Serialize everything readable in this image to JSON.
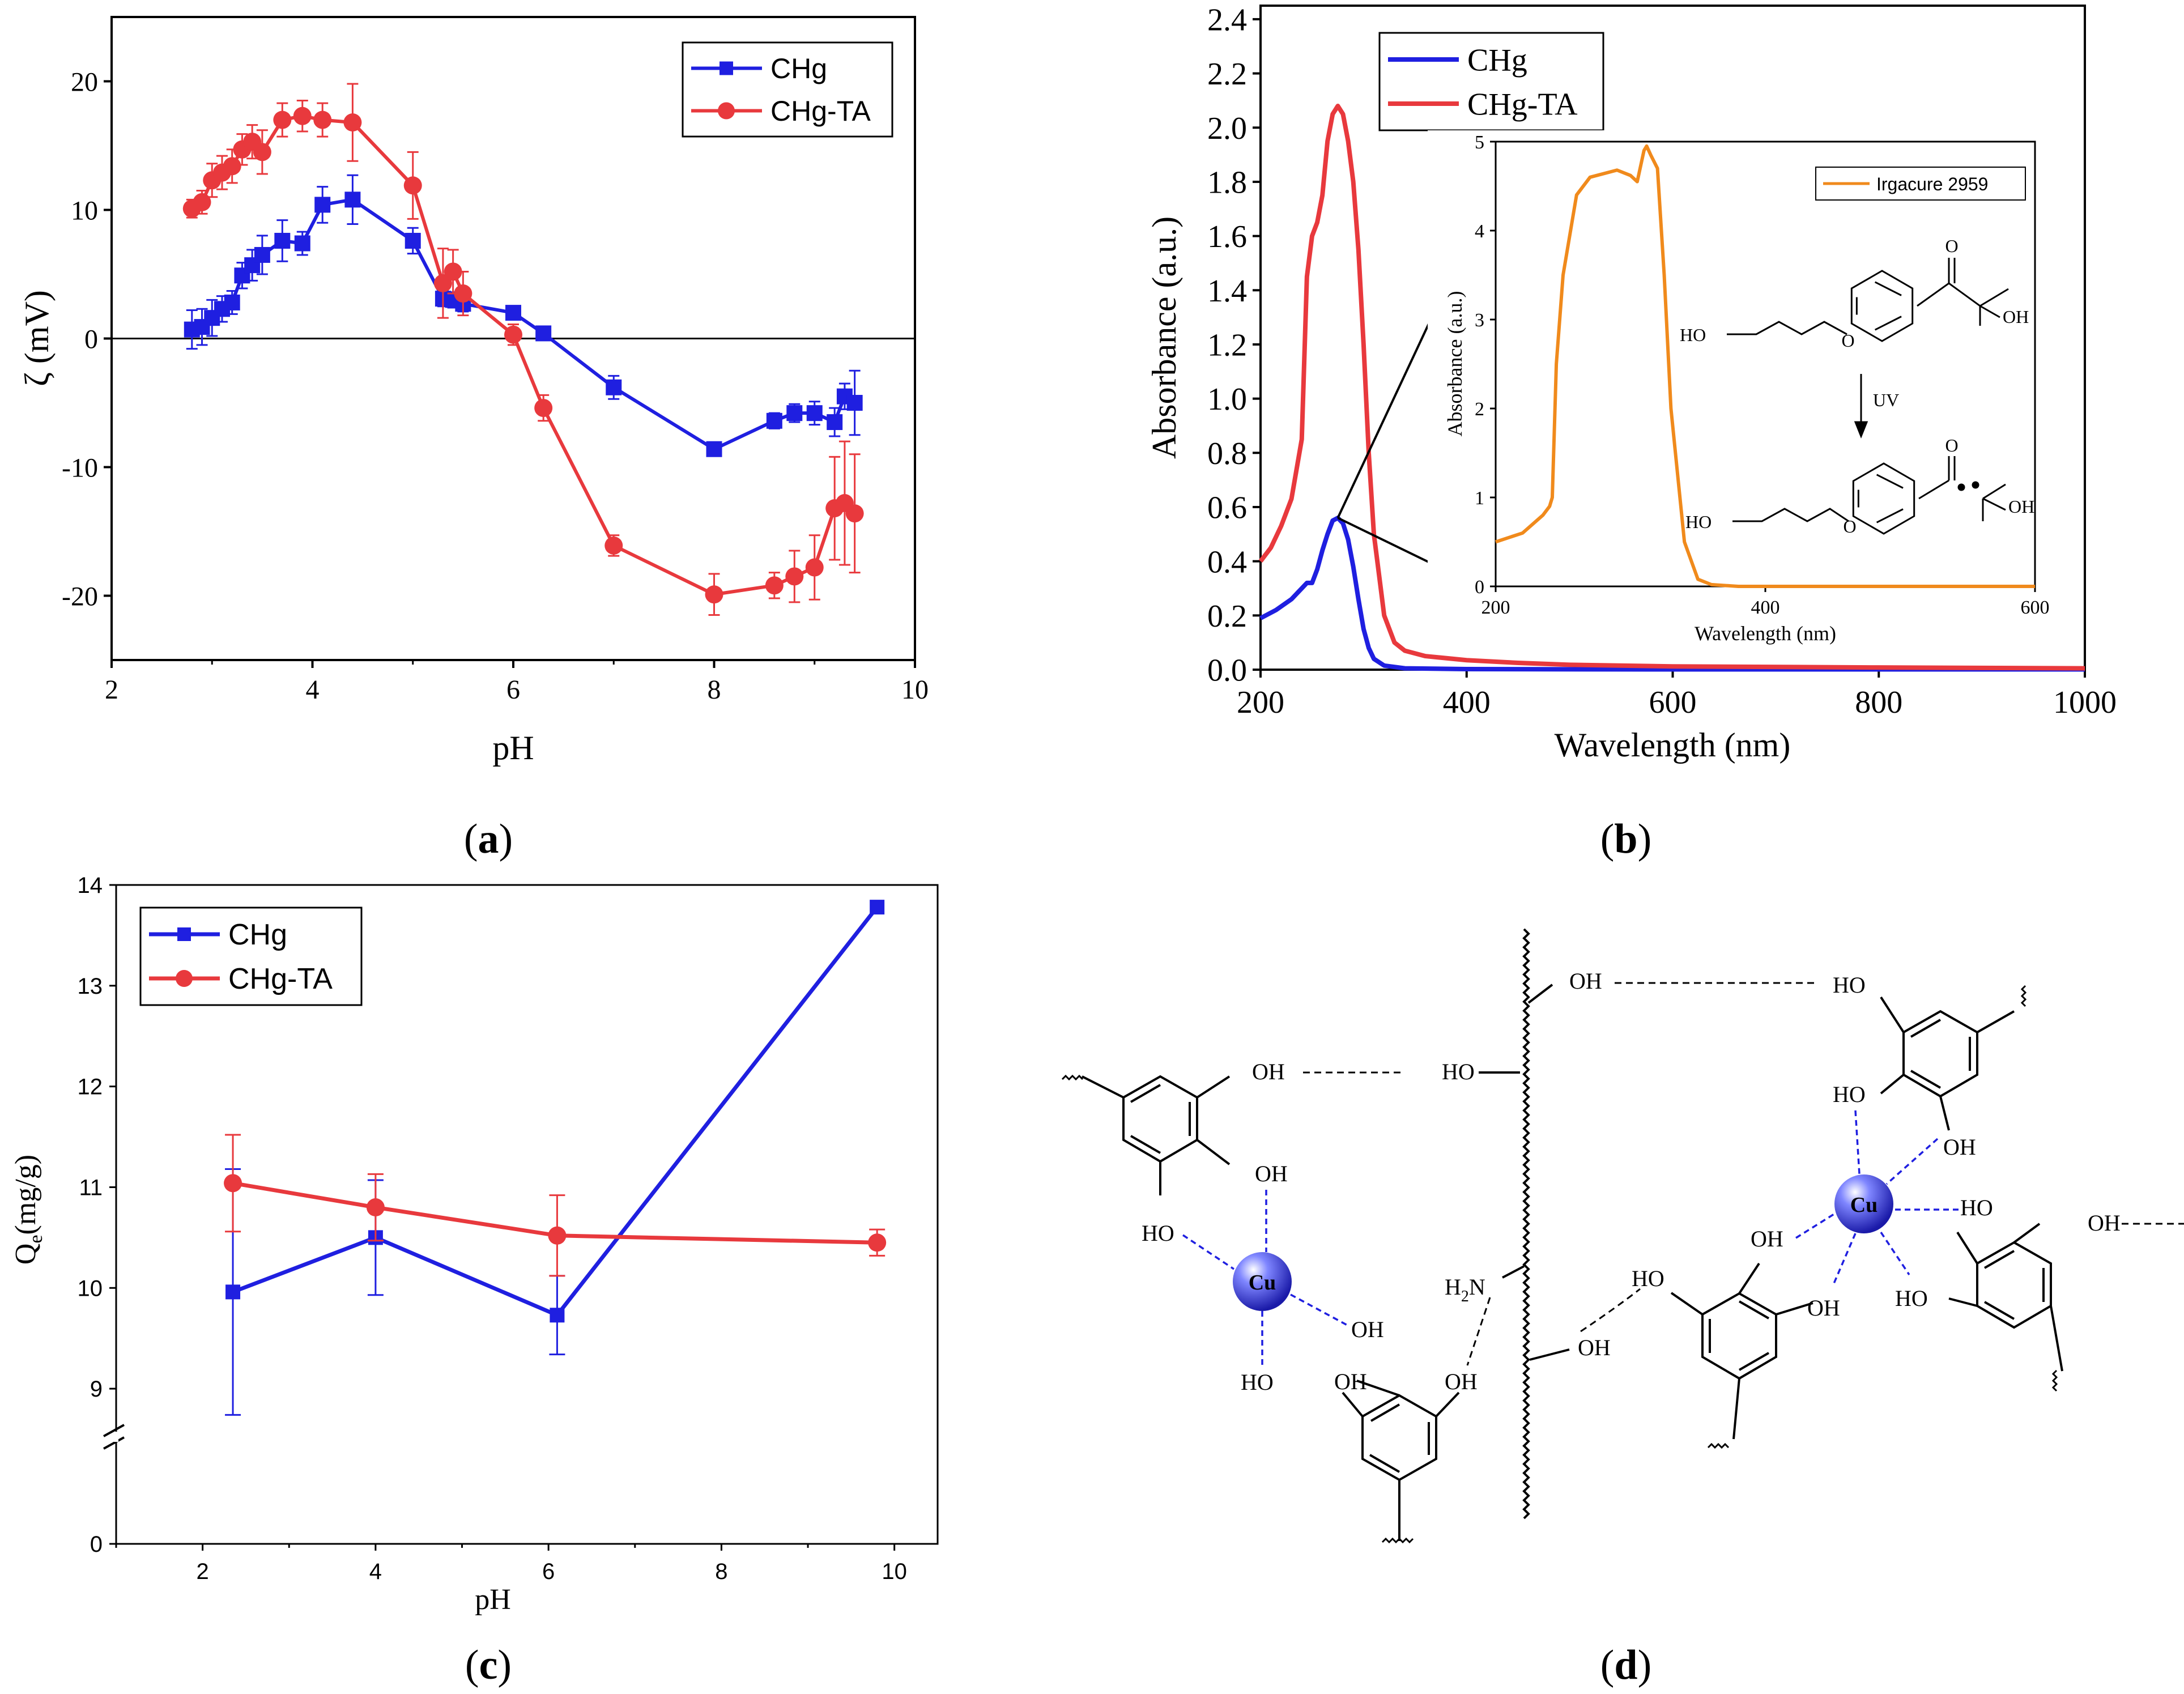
{
  "colors": {
    "blue": "#1f1fe0",
    "red": "#e8393d",
    "orange": "#f08a1c",
    "axis": "#000000"
  },
  "panels": {
    "a": {
      "label": "a"
    },
    "b": {
      "label": "b"
    },
    "c": {
      "label": "c"
    },
    "d": {
      "label": "d"
    }
  },
  "chart_data": [
    {
      "id": "a",
      "type": "line",
      "title": "",
      "xlabel": "pH",
      "ylabel": "ζ (mV)",
      "xlim": [
        2,
        10
      ],
      "ylim": [
        -25,
        25
      ],
      "xticks": [
        2,
        4,
        6,
        8,
        10
      ],
      "yticks": [
        -20,
        -10,
        0,
        10,
        20
      ],
      "zero_line": true,
      "legend": "top-right",
      "series": [
        {
          "name": "CHg",
          "marker": "square",
          "color": "#1f1fe0",
          "x": [
            2.8,
            2.9,
            3.0,
            3.1,
            3.2,
            3.3,
            3.4,
            3.5,
            3.7,
            3.9,
            4.1,
            4.4,
            5.0,
            5.3,
            5.4,
            5.5,
            6.0,
            6.3,
            7.0,
            8.0,
            8.6,
            8.8,
            9.0,
            9.2,
            9.3,
            9.4
          ],
          "y": [
            0.7,
            0.9,
            1.6,
            2.3,
            2.8,
            4.9,
            5.7,
            6.5,
            7.6,
            7.4,
            10.4,
            10.8,
            7.6,
            3.1,
            3.0,
            2.7,
            2.0,
            0.4,
            -3.8,
            -8.6,
            -6.4,
            -5.8,
            -5.8,
            -6.5,
            -4.5,
            -5.0
          ],
          "err": [
            1.5,
            1.4,
            1.4,
            1.0,
            0.9,
            1.0,
            1.2,
            1.5,
            1.6,
            0.9,
            1.4,
            1.9,
            1.0,
            0.6,
            0.6,
            0.6,
            0.5,
            0.3,
            0.9,
            0.3,
            0.6,
            0.7,
            0.9,
            1.1,
            1.0,
            2.5
          ]
        },
        {
          "name": "CHg-TA",
          "marker": "circle",
          "color": "#e8393d",
          "x": [
            2.8,
            2.9,
            3.0,
            3.1,
            3.2,
            3.3,
            3.4,
            3.5,
            3.7,
            3.9,
            4.1,
            4.4,
            5.0,
            5.3,
            5.4,
            5.5,
            6.0,
            6.3,
            7.0,
            8.0,
            8.6,
            8.8,
            9.0,
            9.2,
            9.3,
            9.4
          ],
          "y": [
            10.1,
            10.6,
            12.3,
            12.9,
            13.4,
            14.7,
            15.3,
            14.5,
            17.0,
            17.3,
            17.0,
            16.8,
            11.9,
            4.3,
            5.2,
            3.5,
            0.3,
            -5.4,
            -16.1,
            -19.9,
            -19.2,
            -18.5,
            -17.8,
            -13.2,
            -12.8,
            -13.6
          ],
          "err": [
            0.7,
            0.9,
            1.3,
            1.3,
            1.3,
            1.2,
            1.3,
            1.7,
            1.3,
            1.2,
            1.3,
            3.0,
            2.6,
            2.7,
            1.7,
            1.7,
            0.8,
            1.0,
            0.8,
            1.6,
            1.0,
            2.0,
            2.5,
            4.0,
            4.8,
            4.6
          ]
        }
      ]
    },
    {
      "id": "b",
      "type": "line",
      "title": "",
      "xlabel": "Wavelength (nm)",
      "ylabel": "Absorbance (a.u.)",
      "xlim": [
        200,
        1000
      ],
      "ylim": [
        0,
        2.45
      ],
      "xticks": [
        200,
        400,
        600,
        800,
        1000
      ],
      "yticks": [
        0.0,
        0.2,
        0.4,
        0.6,
        0.8,
        1.0,
        1.2,
        1.4,
        1.6,
        1.8,
        2.0,
        2.2,
        2.4
      ],
      "legend": "top-left",
      "series": [
        {
          "name": "CHg",
          "color": "#1f1fe0",
          "x": [
            200,
            215,
            230,
            240,
            245,
            250,
            255,
            260,
            265,
            270,
            275,
            280,
            285,
            290,
            295,
            300,
            305,
            310,
            320,
            340,
            400,
            600,
            800,
            1000
          ],
          "y": [
            0.19,
            0.22,
            0.26,
            0.3,
            0.32,
            0.32,
            0.37,
            0.44,
            0.5,
            0.55,
            0.56,
            0.54,
            0.48,
            0.38,
            0.26,
            0.15,
            0.08,
            0.04,
            0.015,
            0.005,
            0.002,
            0.001,
            0.001,
            0.001
          ]
        },
        {
          "name": "CHg-TA",
          "color": "#e8393d",
          "x": [
            200,
            210,
            220,
            230,
            240,
            245,
            250,
            255,
            260,
            265,
            270,
            275,
            280,
            285,
            290,
            295,
            300,
            305,
            310,
            320,
            330,
            340,
            360,
            400,
            450,
            500,
            600,
            800,
            1000
          ],
          "y": [
            0.4,
            0.45,
            0.53,
            0.63,
            0.85,
            1.45,
            1.6,
            1.65,
            1.75,
            1.95,
            2.05,
            2.08,
            2.05,
            1.95,
            1.8,
            1.55,
            1.2,
            0.8,
            0.5,
            0.2,
            0.1,
            0.07,
            0.05,
            0.035,
            0.025,
            0.018,
            0.012,
            0.008,
            0.005
          ]
        }
      ],
      "inset": {
        "type": "line",
        "xlabel": "Wavelength (nm)",
        "ylabel": "Absorbance (a.u.)",
        "xlim": [
          200,
          600
        ],
        "ylim": [
          0,
          5
        ],
        "xticks": [
          200,
          400,
          600
        ],
        "yticks": [
          0,
          1,
          2,
          3,
          4,
          5
        ],
        "legend": "top-right",
        "series": [
          {
            "name": "Irgacure 2959",
            "color": "#f08a1c",
            "x": [
              200,
              220,
              235,
              240,
              242,
              245,
              250,
              260,
              270,
              290,
              300,
              305,
              310,
              312,
              315,
              320,
              325,
              330,
              340,
              350,
              360,
              380,
              400,
              600
            ],
            "y": [
              0.5,
              0.6,
              0.8,
              0.9,
              1.0,
              2.5,
              3.5,
              4.4,
              4.6,
              4.68,
              4.62,
              4.55,
              4.9,
              4.95,
              4.85,
              4.7,
              3.5,
              2.0,
              0.5,
              0.08,
              0.02,
              0.0,
              0.0,
              0.0
            ]
          }
        ]
      },
      "scheme": {
        "reactant_ho": "HO",
        "reactant_oh": "OH",
        "reactant_o_ether": "O",
        "reactant_o_ketone": "O",
        "arrow_label": "UV",
        "product_ho": "HO",
        "product_oh": "OH",
        "product_o_ether": "O",
        "product_o_ketone": "O"
      }
    },
    {
      "id": "c",
      "type": "line",
      "title": "",
      "xlabel": "pH",
      "ylabel_main": "Q",
      "ylabel_sub": "e",
      "ylabel_unit": "(mg/g)",
      "xlim": [
        1,
        10.5
      ],
      "ylim": [
        0,
        14
      ],
      "axis_break": [
        0,
        8.5
      ],
      "xticks": [
        2,
        4,
        6,
        8,
        10
      ],
      "yticks": [
        0,
        9,
        10,
        11,
        12,
        13,
        14
      ],
      "legend": "top-left",
      "series": [
        {
          "name": "CHg",
          "marker": "square",
          "color": "#1f1fe0",
          "x": [
            2.35,
            4.0,
            6.1,
            9.8
          ],
          "y": [
            9.96,
            10.5,
            9.73,
            13.78
          ],
          "err": [
            1.22,
            0.57,
            0.39,
            0.0
          ]
        },
        {
          "name": "CHg-TA",
          "marker": "circle",
          "color": "#e8393d",
          "x": [
            2.35,
            4.0,
            6.1,
            9.8
          ],
          "y": [
            11.04,
            10.8,
            10.52,
            10.45
          ],
          "err": [
            0.48,
            0.33,
            0.4,
            0.13
          ]
        }
      ]
    }
  ],
  "diagram_d": {
    "cu_label": "Cu",
    "labels": {
      "l_oh_top": "OH",
      "l_oh_mid": "OH",
      "l_ho_side": "HO",
      "l_oh_cu": "OH",
      "l_ho_bottom": "HO",
      "l_oh_bottom": "OH",
      "chain_ho": "HO",
      "chain_oh_top": "OH",
      "chain_n_main": "H",
      "chain_n_sub": "2",
      "chain_n_end": "N",
      "chain_oh_low": "OH",
      "r_ho_top": "HO",
      "r_ho_mid": "HO",
      "r_oh_1": "OH",
      "r_ho_2": "HO",
      "r_oh_2": "OH",
      "r_ho_3": "HO",
      "r_oh_3": "OH",
      "r_ho_4": "HO",
      "r_oh_4": "OH",
      "r_ho_5": "HO"
    }
  }
}
